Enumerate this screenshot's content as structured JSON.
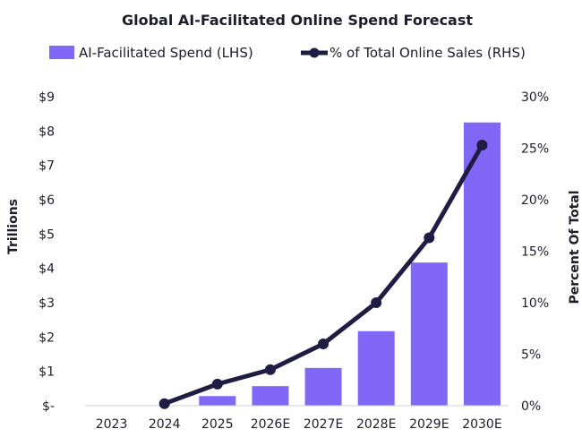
{
  "chart_data": {
    "type": "bar",
    "title": "Global AI-Facilitated Online Spend Forecast",
    "categories": [
      "2023",
      "2024",
      "2025",
      "2026E",
      "2027E",
      "2028E",
      "2029E",
      "2030E"
    ],
    "series": [
      {
        "name": "AI-Facilitated Spend (LHS)",
        "type": "bar",
        "axis": "left",
        "color": "#8167f6",
        "values": [
          0,
          0,
          0.28,
          0.57,
          1.1,
          2.17,
          4.17,
          8.25
        ]
      },
      {
        "name": "% of Total Online Sales (RHS)",
        "type": "line",
        "axis": "right",
        "color": "#1f1d43",
        "values": [
          null,
          0.2,
          2.1,
          3.5,
          6.0,
          10.0,
          16.3,
          25.3
        ]
      }
    ],
    "ylabel": "Trillions",
    "y2label": "Percent Of Total",
    "ylim": [
      0,
      9
    ],
    "y2lim": [
      0,
      30
    ],
    "yticks": [
      "$-",
      "$1",
      "$2",
      "$3",
      "$4",
      "$5",
      "$6",
      "$7",
      "$8",
      "$9"
    ],
    "y2ticks": [
      "0%",
      "5%",
      "10%",
      "15%",
      "20%",
      "25%",
      "30%"
    ],
    "legend": "top",
    "grid": false
  }
}
